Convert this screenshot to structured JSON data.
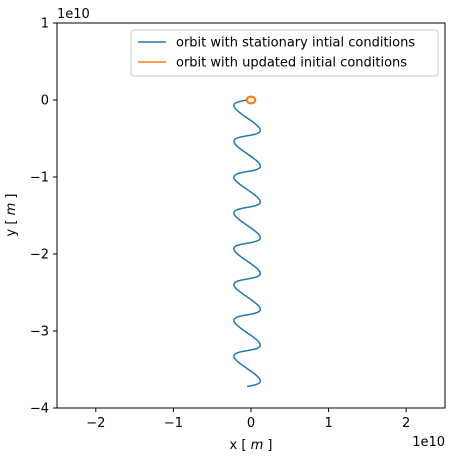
{
  "chart_data": {
    "type": "line",
    "title": "",
    "xlabel": "x [ m ]",
    "ylabel": "y [ m ]",
    "xlabel_parts": {
      "prefix": "x [ ",
      "unit": "m",
      "suffix": " ]"
    },
    "ylabel_parts": {
      "prefix": "y [ ",
      "unit": "m",
      "suffix": " ]"
    },
    "x_offset_text": "1e10",
    "y_offset_text": "1e10",
    "xlim": [
      -2.5,
      2.5
    ],
    "ylim": [
      -4,
      1
    ],
    "xticks": [
      -2,
      -1,
      0,
      1,
      2
    ],
    "xtick_labels": [
      "−2",
      "−1",
      "0",
      "1",
      "2"
    ],
    "yticks": [
      1,
      0,
      -1,
      -2,
      -3,
      -4
    ],
    "ytick_labels": [
      "1",
      "0",
      "−1",
      "−2",
      "−3",
      "−4"
    ],
    "grid": false,
    "legend_position": "upper-right",
    "series": [
      {
        "name": "orbit with stationary intial conditions",
        "color": "#1f77b4",
        "kind": "cycloid",
        "x_center": -0.05,
        "amplitude": 0.17,
        "y_start": 0.0,
        "y_end": -3.72,
        "loops": 8
      },
      {
        "name": "orbit with updated initial conditions",
        "color": "#ff7f0e",
        "kind": "circle",
        "center": [
          0.0,
          0.0
        ],
        "radius": 0.055
      }
    ]
  }
}
